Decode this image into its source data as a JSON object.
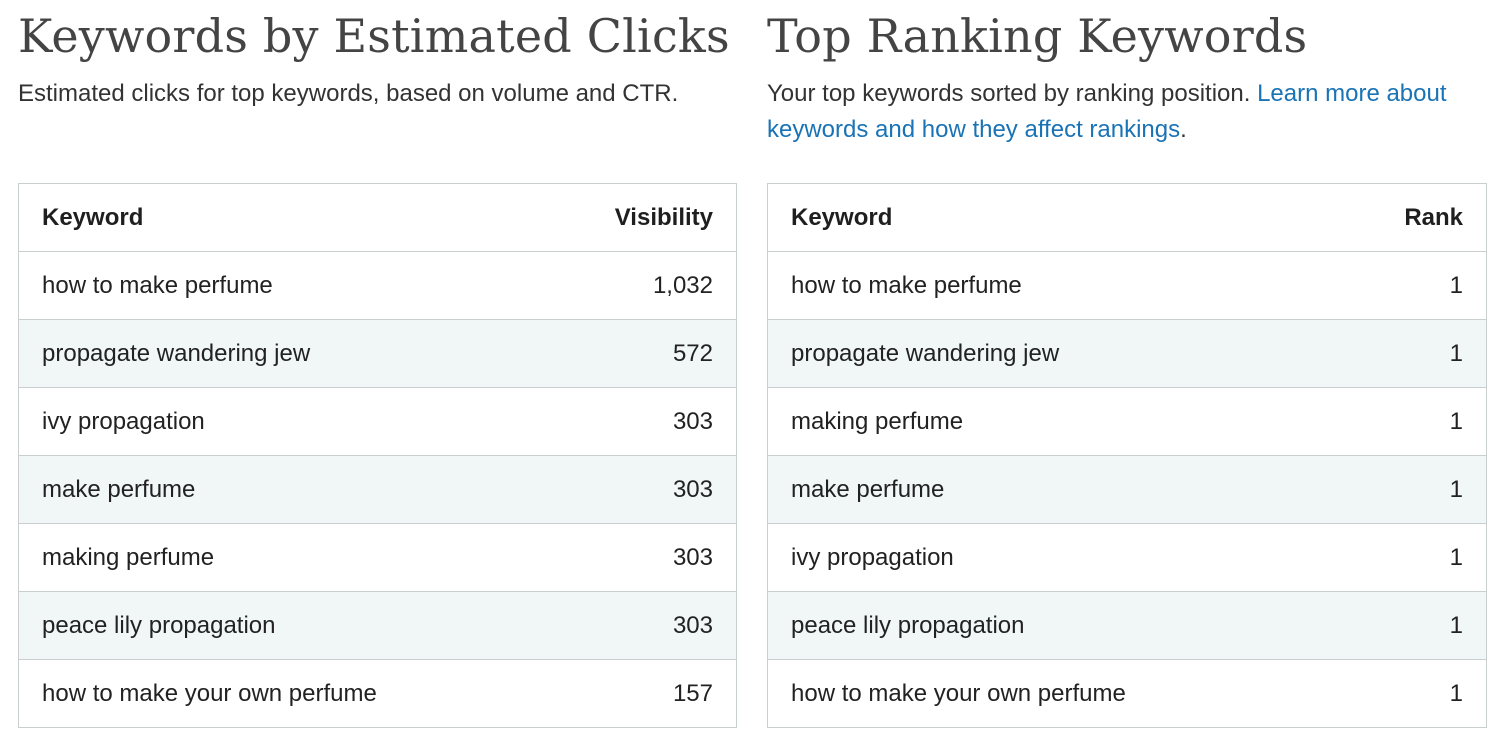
{
  "left_panel": {
    "title": "Keywords by Estimated Clicks",
    "description": "Estimated clicks for top keywords, based on volume and CTR.",
    "columns": {
      "keyword": "Keyword",
      "value": "Visibility"
    },
    "rows": [
      {
        "keyword": "how to make perfume",
        "value": "1,032"
      },
      {
        "keyword": "propagate wandering jew",
        "value": "572"
      },
      {
        "keyword": "ivy propagation",
        "value": "303"
      },
      {
        "keyword": "make perfume",
        "value": "303"
      },
      {
        "keyword": "making perfume",
        "value": "303"
      },
      {
        "keyword": "peace lily propagation",
        "value": "303"
      },
      {
        "keyword": "how to make your own perfume",
        "value": "157"
      }
    ]
  },
  "right_panel": {
    "title": "Top Ranking Keywords",
    "description": "Your top keywords sorted by ranking position.",
    "link_text": "Learn more about keywords and how they affect rankings",
    "description_end": ".",
    "columns": {
      "keyword": "Keyword",
      "value": "Rank"
    },
    "rows": [
      {
        "keyword": "how to make perfume",
        "value": "1"
      },
      {
        "keyword": "propagate wandering jew",
        "value": "1"
      },
      {
        "keyword": "making perfume",
        "value": "1"
      },
      {
        "keyword": "make perfume",
        "value": "1"
      },
      {
        "keyword": "ivy propagation",
        "value": "1"
      },
      {
        "keyword": "peace lily propagation",
        "value": "1"
      },
      {
        "keyword": "how to make your own perfume",
        "value": "1"
      }
    ]
  },
  "colors": {
    "link": "#1a73b5",
    "alt_row": "#f0f7f6",
    "border": "#c9cfcf",
    "title": "#444444"
  }
}
